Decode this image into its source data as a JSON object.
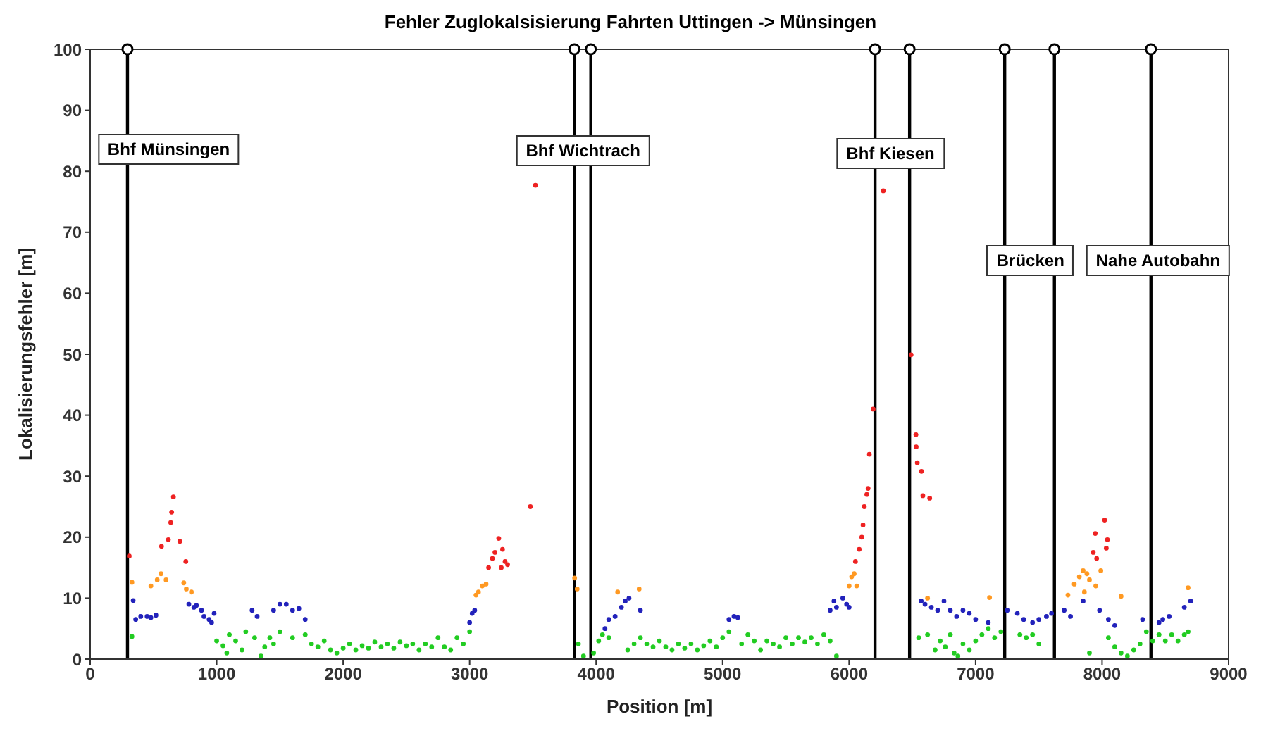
{
  "chart_data": {
    "type": "scatter",
    "title": "Fehler Zuglokalsisierung Fahrten Uttingen -> Münsingen",
    "xlabel": "Position [m]",
    "ylabel": "Lokalisierungsfehler [m]",
    "xlim": [
      0,
      9000
    ],
    "xticks": [
      0,
      1000,
      2000,
      3000,
      4000,
      5000,
      6000,
      7000,
      8000,
      9000
    ],
    "ylim": [
      0,
      100
    ],
    "yticks": [
      0,
      10,
      20,
      30,
      40,
      50,
      60,
      70,
      80,
      90,
      100
    ],
    "grid": false,
    "legend": false,
    "marker": "circle",
    "series": [
      {
        "color": "#22cc22",
        "x": [
          330,
          1000,
          1050,
          1080,
          1100,
          1150,
          1200,
          1230,
          1300,
          1350,
          1380,
          1420,
          1450,
          1500,
          1600,
          1700,
          1750,
          1800,
          1850,
          1900,
          1950,
          2000,
          2050,
          2100,
          2150,
          2200,
          2250,
          2300,
          2350,
          2400,
          2450,
          2500,
          2550,
          2600,
          2650,
          2700,
          2750,
          2800,
          2850,
          2900,
          2950,
          3000,
          3860,
          3900,
          3980,
          4020,
          4050,
          4100,
          4250,
          4300,
          4350,
          4400,
          4450,
          4500,
          4550,
          4600,
          4650,
          4700,
          4750,
          4800,
          4850,
          4900,
          4950,
          5000,
          5050,
          5150,
          5200,
          5250,
          5300,
          5350,
          5400,
          5450,
          5500,
          5550,
          5600,
          5650,
          5700,
          5750,
          5800,
          5850,
          5900,
          6550,
          6620,
          6680,
          6720,
          6760,
          6800,
          6830,
          6860,
          6900,
          6950,
          7000,
          7050,
          7100,
          7150,
          7200,
          7350,
          7400,
          7450,
          7500,
          7900,
          8050,
          8100,
          8150,
          8200,
          8250,
          8300,
          8350,
          8400,
          8450,
          8500,
          8550,
          8600,
          8650,
          8680
        ],
        "values": [
          3.7,
          3,
          2.2,
          1,
          4,
          3,
          1.5,
          4.5,
          3.5,
          0.5,
          2,
          3.5,
          2.5,
          4.5,
          3.5,
          4,
          2.5,
          2,
          3,
          1.5,
          1,
          1.8,
          2.5,
          1.5,
          2.2,
          1.8,
          2.8,
          2,
          2.5,
          1.8,
          2.8,
          2.2,
          2.5,
          1.5,
          2.5,
          2,
          3.5,
          2,
          1.5,
          3.5,
          2.5,
          4.5,
          2.5,
          0.5,
          1,
          3,
          4,
          3.5,
          1.5,
          2.5,
          3.5,
          2.5,
          2,
          3,
          2,
          1.5,
          2.5,
          1.8,
          2.5,
          1.5,
          2.2,
          3,
          2,
          3.5,
          4.5,
          2.5,
          4,
          3,
          1.5,
          3,
          2.5,
          2,
          3.5,
          2.5,
          3.5,
          2.8,
          3.5,
          2.5,
          4,
          3,
          0.5,
          3.5,
          4,
          1.5,
          3,
          2,
          4,
          1,
          0.5,
          2.5,
          1.5,
          3,
          4,
          5,
          3.5,
          4.5,
          4,
          3.5,
          4,
          2.5,
          1,
          3.5,
          2,
          1,
          0.5,
          1.5,
          2.5,
          4.5,
          3,
          4,
          3,
          4,
          3,
          4,
          4.5
        ]
      },
      {
        "color": "#2222bb",
        "x": [
          340,
          360,
          400,
          450,
          480,
          520,
          780,
          820,
          840,
          880,
          900,
          940,
          960,
          980,
          1280,
          1320,
          1450,
          1500,
          1550,
          1600,
          1650,
          1700,
          3000,
          3020,
          3040,
          4070,
          4100,
          4150,
          4200,
          4230,
          4260,
          4350,
          5050,
          5090,
          5120,
          5850,
          5880,
          5900,
          5950,
          5980,
          6000,
          6570,
          6600,
          6650,
          6700,
          6750,
          6800,
          6850,
          6900,
          6950,
          7000,
          7100,
          7250,
          7330,
          7380,
          7450,
          7500,
          7560,
          7600,
          7700,
          7750,
          7850,
          7980,
          8050,
          8100,
          8320,
          8450,
          8480,
          8530,
          8650,
          8700
        ],
        "values": [
          9.6,
          6.5,
          7,
          7,
          6.8,
          7.2,
          9,
          8.5,
          8.8,
          8,
          7,
          6.5,
          6,
          7.5,
          8,
          7,
          8,
          9,
          9,
          8,
          8.3,
          6.5,
          6,
          7.5,
          8,
          5,
          6.5,
          7,
          8.5,
          9.5,
          10,
          8,
          6.5,
          7,
          6.8,
          8,
          9.5,
          8.5,
          10,
          9,
          8.5,
          9.5,
          9,
          8.5,
          8,
          9.5,
          8,
          7,
          8,
          7.5,
          6.5,
          6,
          8,
          7.5,
          6.5,
          6,
          6.5,
          7,
          7.5,
          8,
          7,
          9.5,
          8,
          6.5,
          5.5,
          6.5,
          6,
          6.5,
          7,
          8.5,
          9.5
        ]
      },
      {
        "color": "#ff9922",
        "x": [
          330,
          480,
          530,
          560,
          600,
          740,
          760,
          800,
          3050,
          3070,
          3100,
          3130,
          3830,
          3850,
          4170,
          4340,
          6000,
          6020,
          6040,
          6060,
          6620,
          7110,
          7730,
          7780,
          7820,
          7850,
          7860,
          7880,
          7900,
          7950,
          7990,
          8150,
          8680
        ],
        "values": [
          12.6,
          12,
          13,
          14,
          13,
          12.5,
          11.5,
          11,
          10.5,
          11,
          12,
          12.3,
          13.3,
          11.5,
          11,
          11.5,
          12,
          13.5,
          14,
          12,
          10,
          10.1,
          10.5,
          12.3,
          13.5,
          14.5,
          11,
          14,
          13,
          12,
          14.5,
          10.3,
          11.7
        ]
      },
      {
        "color": "#ee2222",
        "x": [
          309,
          564,
          618,
          637,
          644,
          658,
          709,
          756,
          3150,
          3180,
          3200,
          3230,
          3250,
          3260,
          3280,
          3300,
          3480,
          3520,
          6050,
          6080,
          6100,
          6110,
          6120,
          6140,
          6150,
          6160,
          6190,
          6270,
          6490,
          6528,
          6530,
          6539,
          6572,
          6583,
          6637,
          7930,
          7946,
          7957,
          8020,
          8033,
          8042
        ],
        "values": [
          16.9,
          18.5,
          19.6,
          22.4,
          24.1,
          26.6,
          19.3,
          16,
          15,
          16.5,
          17.5,
          19.8,
          15,
          18,
          16,
          15.5,
          25,
          77.7,
          16,
          18,
          20,
          22,
          25,
          27,
          28,
          33.6,
          41,
          76.8,
          49.9,
          36.8,
          34.8,
          32.2,
          30.8,
          26.8,
          26.4,
          17.5,
          20.6,
          16.5,
          22.8,
          18.2,
          19.6
        ]
      }
    ],
    "ref_lines": [
      {
        "axis": "x",
        "value": 295,
        "color": "#000000"
      },
      {
        "axis": "x",
        "value": 3828,
        "color": "#000000"
      },
      {
        "axis": "x",
        "value": 3958,
        "color": "#000000"
      },
      {
        "axis": "x",
        "value": 6205,
        "color": "#000000"
      },
      {
        "axis": "x",
        "value": 6478,
        "color": "#000000"
      },
      {
        "axis": "x",
        "value": 7230,
        "color": "#000000"
      },
      {
        "axis": "x",
        "value": 7623,
        "color": "#000000"
      },
      {
        "axis": "x",
        "value": 8386,
        "color": "#000000"
      }
    ],
    "annotations": [
      "Bhf Münsingen",
      "Bhf Wichtrach",
      "Bhf Kiesen",
      "Brücken",
      "Nahe Autobahn"
    ]
  }
}
